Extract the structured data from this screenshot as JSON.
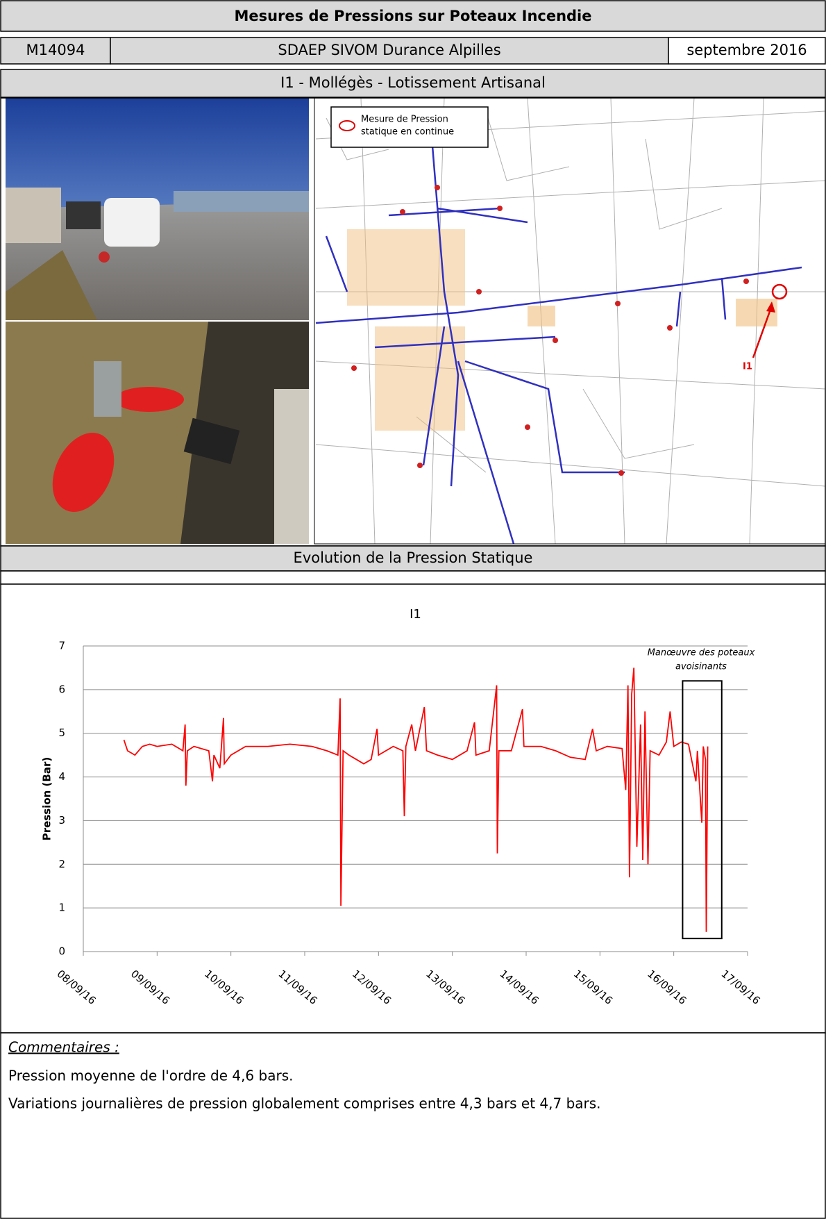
{
  "header": {
    "title": "Mesures de Pressions sur Poteaux Incendie",
    "code": "M14094",
    "client": "SDAEP SIVOM Durance Alpilles",
    "date": "septembre 2016",
    "site": "I1 - Mollégès - Lotissement Artisanal"
  },
  "map": {
    "legend": [
      "Mesure de Pression",
      "statique en continue"
    ],
    "marker_label": "I1"
  },
  "section_title": "Evolution de la Pression Statique",
  "chart_data": {
    "type": "line",
    "title": "I1",
    "y_label": "Pression (Bar)",
    "color": "#ff0000",
    "grid": true,
    "annotation": [
      "Manœuvre des poteaux",
      "avoisinants"
    ],
    "xlim": [
      8,
      17
    ],
    "xticks": [
      {
        "value": 8,
        "label": "08/09/16"
      },
      {
        "value": 9,
        "label": "09/09/16"
      },
      {
        "value": 10,
        "label": "10/09/16"
      },
      {
        "value": 11,
        "label": "11/09/16"
      },
      {
        "value": 12,
        "label": "12/09/16"
      },
      {
        "value": 13,
        "label": "13/09/16"
      },
      {
        "value": 14,
        "label": "14/09/16"
      },
      {
        "value": 15,
        "label": "15/09/16"
      },
      {
        "value": 16,
        "label": "16/09/16"
      },
      {
        "value": 17,
        "label": "17/09/16"
      }
    ],
    "ylim": [
      0,
      7
    ],
    "yticks": [
      0,
      1,
      2,
      3,
      4,
      5,
      6,
      7
    ],
    "x": [
      8.55,
      8.6,
      8.7,
      8.8,
      8.9,
      9.0,
      9.2,
      9.35,
      9.38,
      9.39,
      9.41,
      9.5,
      9.7,
      9.75,
      9.77,
      9.85,
      9.9,
      9.91,
      10.0,
      10.2,
      10.5,
      10.8,
      11.1,
      11.3,
      11.45,
      11.48,
      11.49,
      11.52,
      11.6,
      11.8,
      11.9,
      11.98,
      12.0,
      12.2,
      12.33,
      12.35,
      12.37,
      12.45,
      12.5,
      12.62,
      12.65,
      12.8,
      13.0,
      13.2,
      13.3,
      13.32,
      13.5,
      13.6,
      13.61,
      13.63,
      13.8,
      13.95,
      13.97,
      14.2,
      14.4,
      14.6,
      14.8,
      14.9,
      14.95,
      15.1,
      15.3,
      15.35,
      15.38,
      15.4,
      15.43,
      15.46,
      15.5,
      15.55,
      15.58,
      15.61,
      15.65,
      15.68,
      15.8,
      15.9,
      15.95,
      16.0,
      16.1,
      16.2,
      16.3,
      16.32,
      16.38,
      16.4,
      16.43,
      16.44,
      16.46
    ],
    "values": [
      4.85,
      4.6,
      4.5,
      4.7,
      4.75,
      4.7,
      4.75,
      4.6,
      5.2,
      3.8,
      4.6,
      4.7,
      4.6,
      3.9,
      4.5,
      4.2,
      5.35,
      4.3,
      4.5,
      4.7,
      4.7,
      4.75,
      4.7,
      4.6,
      4.5,
      5.8,
      1.05,
      4.6,
      4.5,
      4.3,
      4.4,
      5.1,
      4.5,
      4.7,
      4.6,
      3.1,
      4.7,
      5.2,
      4.6,
      5.6,
      4.6,
      4.5,
      4.4,
      4.6,
      5.25,
      4.5,
      4.6,
      6.1,
      2.25,
      4.6,
      4.6,
      5.55,
      4.7,
      4.7,
      4.6,
      4.45,
      4.4,
      5.1,
      4.6,
      4.7,
      4.65,
      3.7,
      6.1,
      1.7,
      5.9,
      6.5,
      2.4,
      5.2,
      2.1,
      5.5,
      2.0,
      4.6,
      4.5,
      4.8,
      5.5,
      4.7,
      4.8,
      4.75,
      3.9,
      4.6,
      2.95,
      4.7,
      4.4,
      0.45,
      4.7
    ]
  },
  "comments": {
    "title": "Commentaires :",
    "lines": [
      "Pression moyenne de l'ordre de 4,6 bars.",
      "Variations journalières de pression globalement comprises entre 4,3 bars et 4,7 bars."
    ]
  }
}
